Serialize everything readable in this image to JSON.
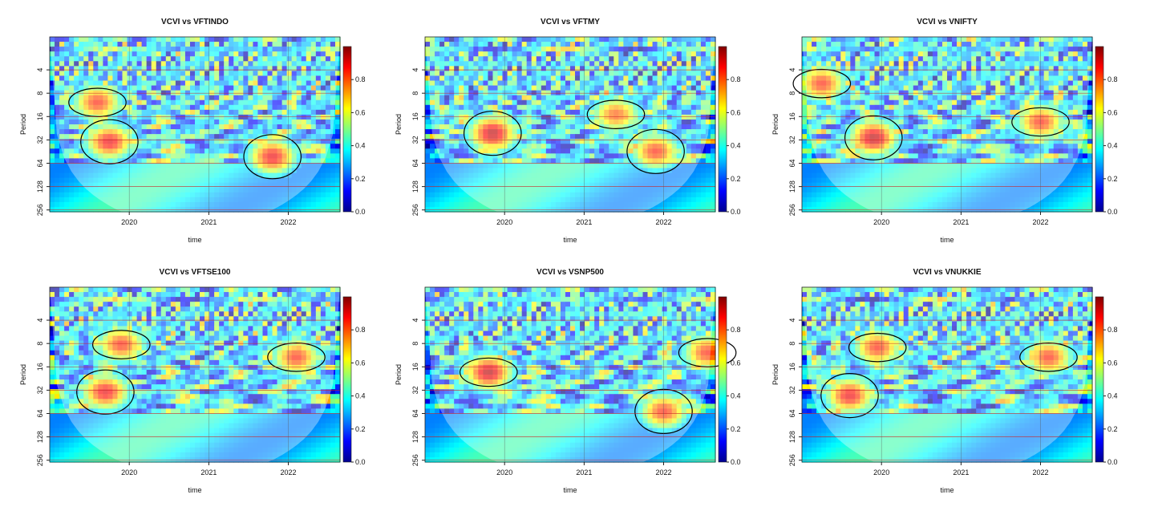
{
  "chart_data": [
    {
      "type": "heatmap",
      "title": "VCVI vs VFTINDO",
      "xlabel": "time",
      "ylabel": "Period",
      "x_ticks": [
        "2020",
        "2021",
        "2022"
      ],
      "y_ticks": [
        "4",
        "8",
        "16",
        "32",
        "64",
        "128",
        "256"
      ],
      "colorbar_ticks": [
        "0.0",
        "0.2",
        "0.4",
        "0.6",
        "0.8"
      ],
      "colorbar_range": [
        0,
        1
      ],
      "high_coherence_regions": [
        {
          "t_center": 2019.75,
          "period_center": 45,
          "strength": 0.9
        },
        {
          "t_center": 2019.6,
          "period_center": 14,
          "strength": 0.85
        },
        {
          "t_center": 2021.8,
          "period_center": 70,
          "strength": 0.9
        }
      ]
    },
    {
      "type": "heatmap",
      "title": "VCVI vs VFTMY",
      "xlabel": "time",
      "ylabel": "Period",
      "x_ticks": [
        "2020",
        "2021",
        "2022"
      ],
      "y_ticks": [
        "4",
        "8",
        "16",
        "32",
        "64",
        "128",
        "256"
      ],
      "colorbar_ticks": [
        "0.0",
        "0.2",
        "0.4",
        "0.6",
        "0.8"
      ],
      "colorbar_range": [
        0,
        1
      ],
      "high_coherence_regions": [
        {
          "t_center": 2019.85,
          "period_center": 35,
          "strength": 0.95
        },
        {
          "t_center": 2021.4,
          "period_center": 20,
          "strength": 0.8
        },
        {
          "t_center": 2021.9,
          "period_center": 60,
          "strength": 0.85
        }
      ]
    },
    {
      "type": "heatmap",
      "title": "VCVI vs VNIFTY",
      "xlabel": "time",
      "ylabel": "Period",
      "x_ticks": [
        "2020",
        "2021",
        "2022"
      ],
      "y_ticks": [
        "4",
        "8",
        "16",
        "32",
        "64",
        "128",
        "256"
      ],
      "colorbar_ticks": [
        "0.0",
        "0.2",
        "0.4",
        "0.6",
        "0.8"
      ],
      "colorbar_range": [
        0,
        1
      ],
      "high_coherence_regions": [
        {
          "t_center": 2019.9,
          "period_center": 40,
          "strength": 0.95
        },
        {
          "t_center": 2022.0,
          "period_center": 25,
          "strength": 0.85
        },
        {
          "t_center": 2019.25,
          "period_center": 8,
          "strength": 0.85
        }
      ]
    },
    {
      "type": "heatmap",
      "title": "VCVI vs VFTSE100",
      "xlabel": "time",
      "ylabel": "Period",
      "x_ticks": [
        "2020",
        "2021",
        "2022"
      ],
      "y_ticks": [
        "4",
        "8",
        "16",
        "32",
        "64",
        "128",
        "256"
      ],
      "colorbar_ticks": [
        "0.0",
        "0.2",
        "0.4",
        "0.6",
        "0.8"
      ],
      "colorbar_range": [
        0,
        1
      ],
      "high_coherence_regions": [
        {
          "t_center": 2019.7,
          "period_center": 45,
          "strength": 0.9
        },
        {
          "t_center": 2019.9,
          "period_center": 11,
          "strength": 0.85
        },
        {
          "t_center": 2022.1,
          "period_center": 16,
          "strength": 0.85
        }
      ]
    },
    {
      "type": "heatmap",
      "title": "VCVI vs VSNP500",
      "xlabel": "time",
      "ylabel": "Period",
      "x_ticks": [
        "2020",
        "2021",
        "2022"
      ],
      "y_ticks": [
        "4",
        "8",
        "16",
        "32",
        "64",
        "128",
        "256"
      ],
      "colorbar_ticks": [
        "0.0",
        "0.2",
        "0.4",
        "0.6",
        "0.8"
      ],
      "colorbar_range": [
        0,
        1
      ],
      "high_coherence_regions": [
        {
          "t_center": 2019.8,
          "period_center": 25,
          "strength": 0.95
        },
        {
          "t_center": 2022.0,
          "period_center": 80,
          "strength": 0.85
        },
        {
          "t_center": 2022.55,
          "period_center": 14,
          "strength": 0.85
        }
      ]
    },
    {
      "type": "heatmap",
      "title": "VCVI vs VNUKKIE",
      "xlabel": "time",
      "ylabel": "Period",
      "x_ticks": [
        "2020",
        "2021",
        "2022"
      ],
      "y_ticks": [
        "4",
        "8",
        "16",
        "32",
        "64",
        "128",
        "256"
      ],
      "colorbar_ticks": [
        "0.0",
        "0.2",
        "0.4",
        "0.6",
        "0.8"
      ],
      "colorbar_range": [
        0,
        1
      ],
      "high_coherence_regions": [
        {
          "t_center": 2019.6,
          "period_center": 50,
          "strength": 0.9
        },
        {
          "t_center": 2019.95,
          "period_center": 12,
          "strength": 0.85
        },
        {
          "t_center": 2022.1,
          "period_center": 16,
          "strength": 0.85
        }
      ]
    }
  ]
}
